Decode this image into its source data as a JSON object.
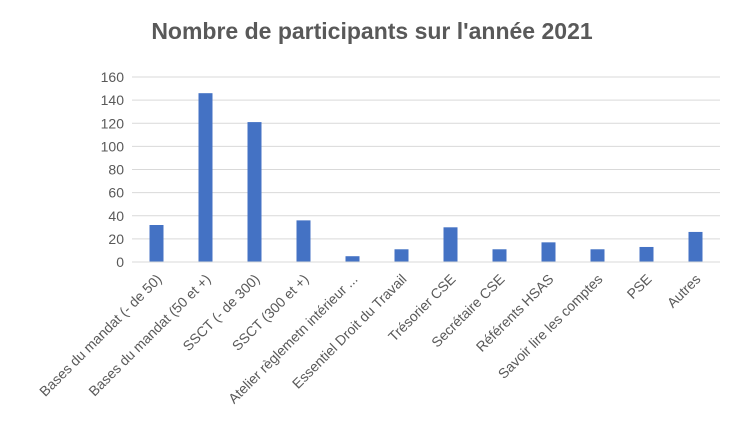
{
  "chart_data": {
    "type": "bar",
    "title": "Nombre de participants sur l'année 2021",
    "xlabel": "",
    "ylabel": "",
    "categories": [
      "Bases du mandat (- de 50)",
      "Bases du mandat (50 et +)",
      "SSCT (- de 300)",
      "SSCT (300 et +)",
      "Atelier règlemetn intérieur ...",
      "Essentiel Droit du Travail",
      "Trésorier CSE",
      "Secrétaire CSE",
      "Référents HSAS",
      "Savoir lire les comptes",
      "PSE",
      "Autres"
    ],
    "values": [
      32,
      146,
      121,
      36,
      5,
      11,
      30,
      11,
      17,
      11,
      13,
      26
    ],
    "ylim": [
      0,
      160
    ],
    "yticks": [
      0,
      20,
      40,
      60,
      80,
      100,
      120,
      140,
      160
    ],
    "grid": true,
    "legend": "none",
    "colors": {
      "bar": "#4472C4",
      "grid": "#D9D9D9",
      "text": "#595959"
    }
  }
}
